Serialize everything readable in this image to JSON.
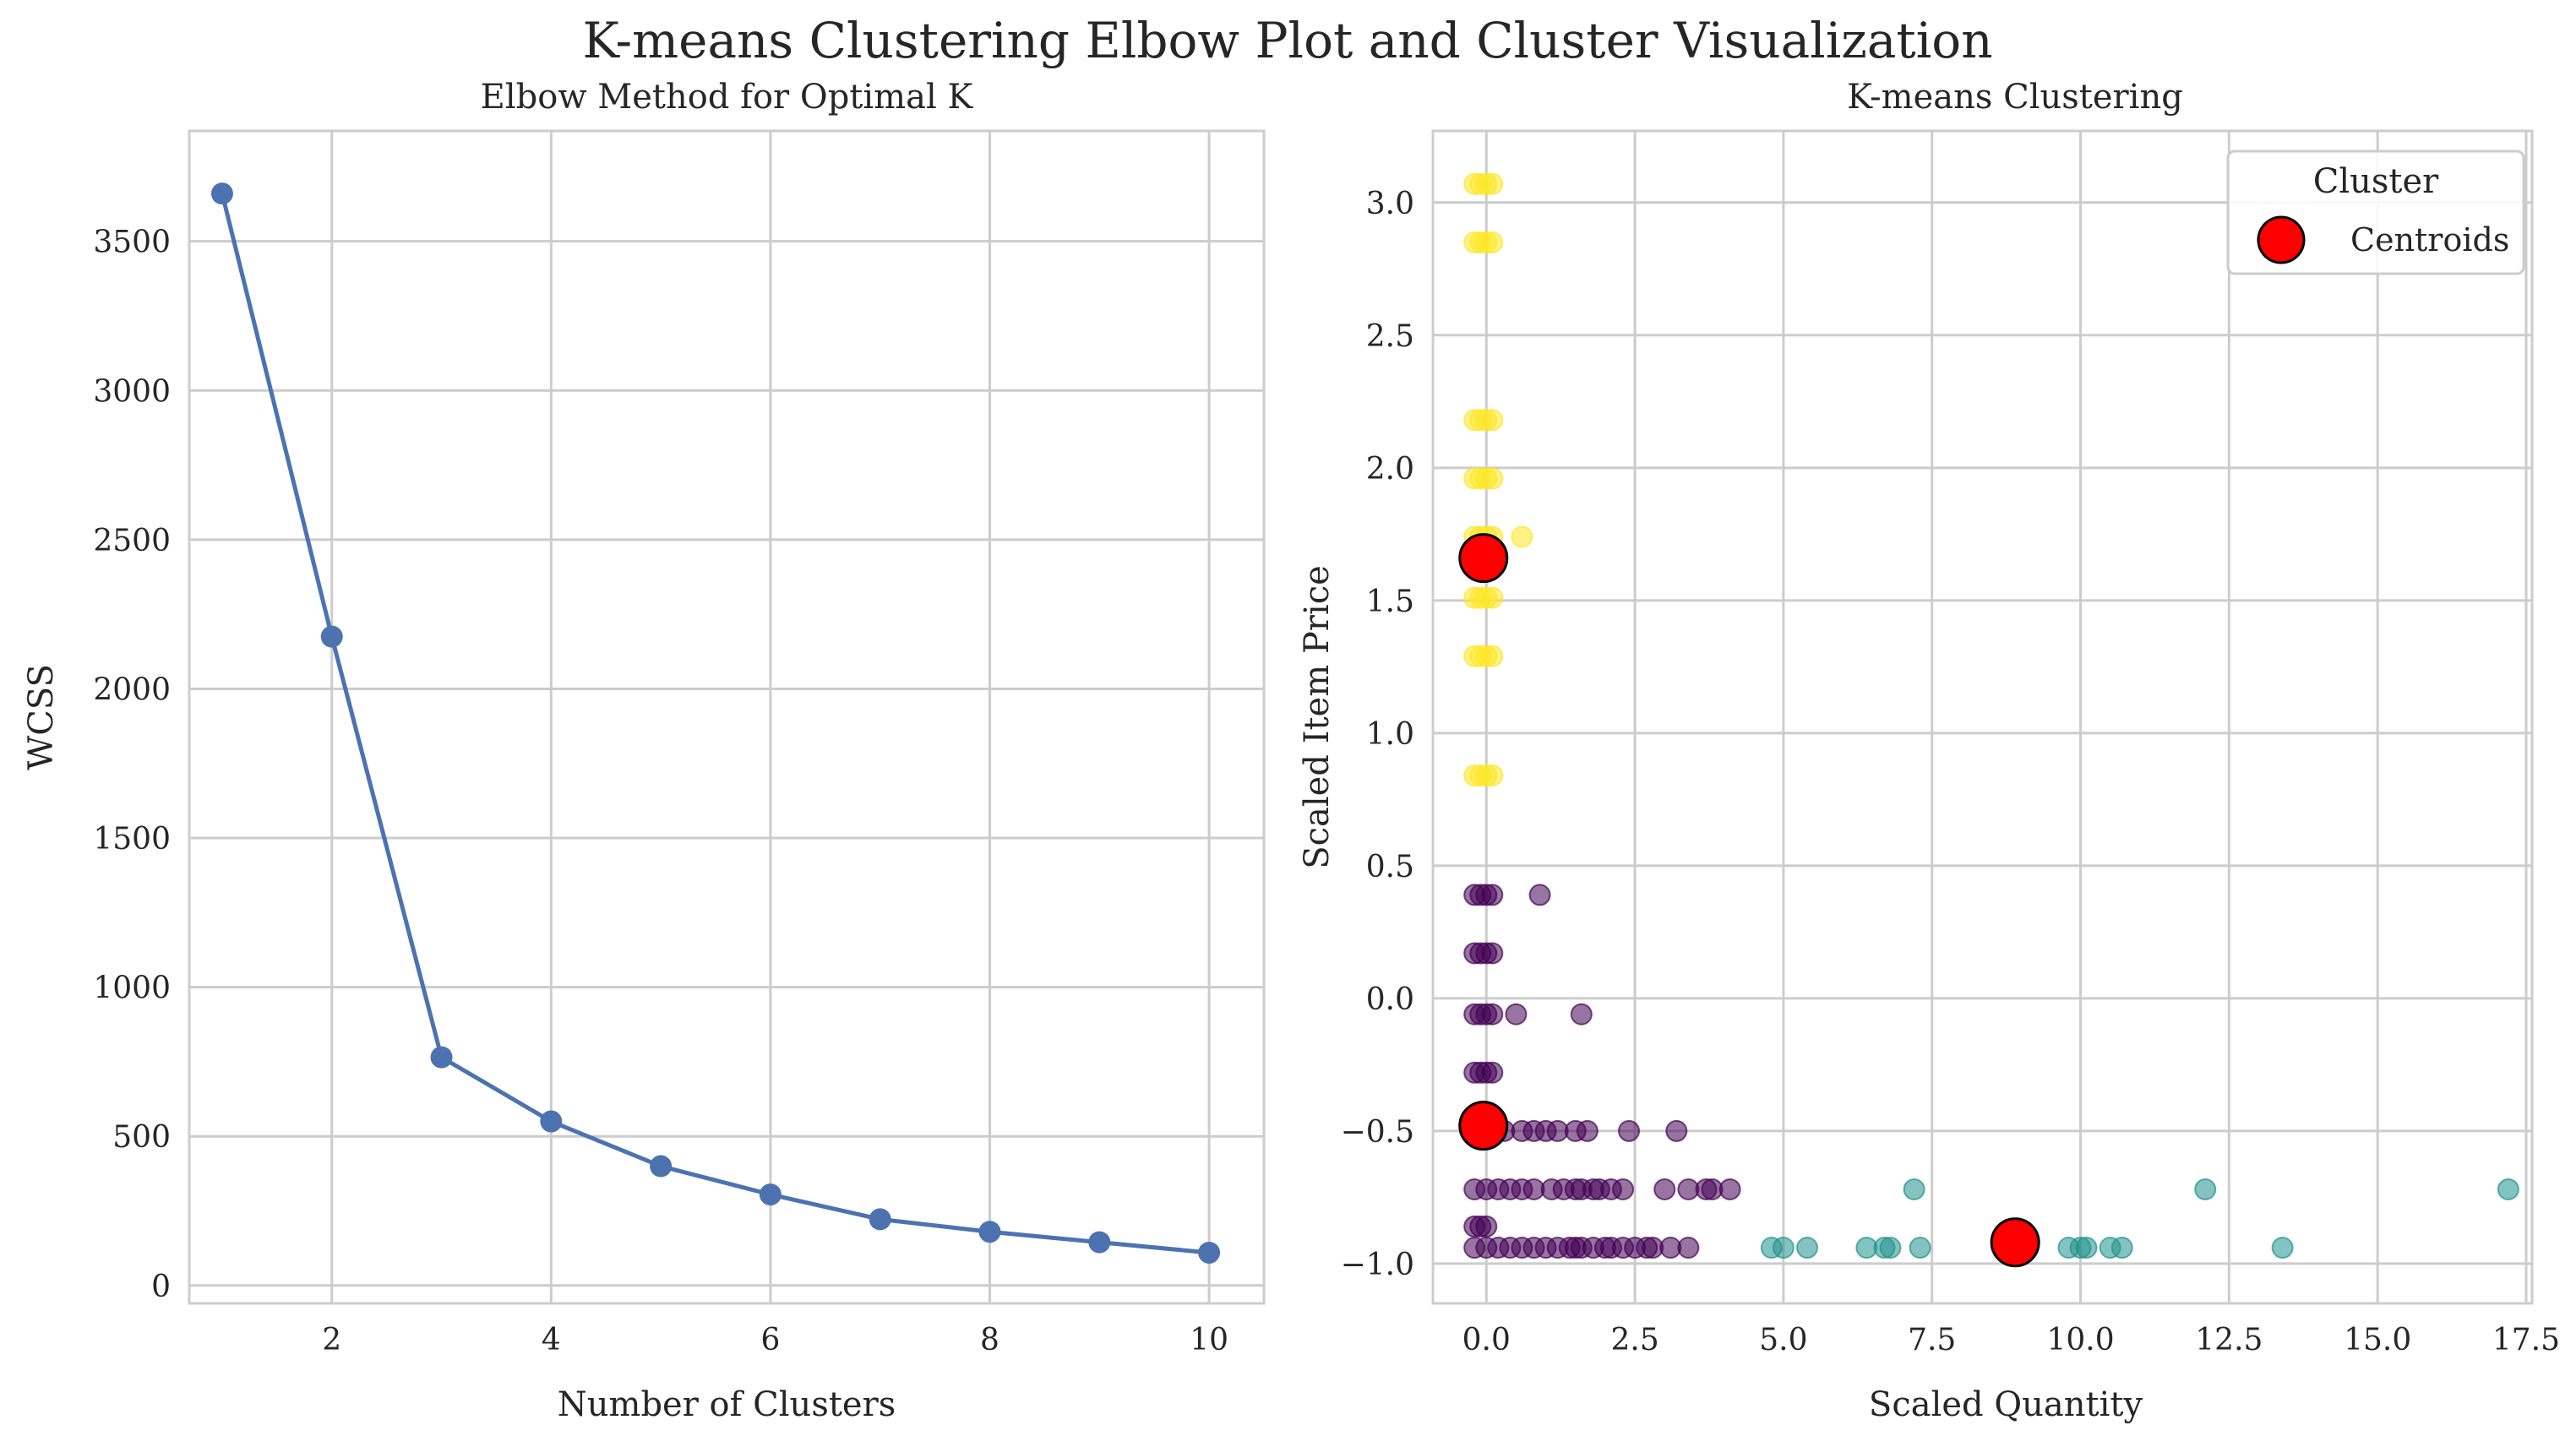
{
  "figure": {
    "suptitle": "K-means Clustering Elbow Plot and Cluster Visualization"
  },
  "chart_data": [
    {
      "type": "line",
      "title": "Elbow Method for Optimal K",
      "xlabel": "Number of Clusters",
      "ylabel": "WCSS",
      "x": [
        1,
        2,
        3,
        4,
        5,
        6,
        7,
        8,
        9,
        10
      ],
      "y": [
        3660,
        2175,
        765,
        550,
        400,
        305,
        222,
        180,
        145,
        110
      ],
      "xlim": [
        0.7,
        10.5
      ],
      "ylim": [
        -60,
        3870
      ],
      "xticks": [
        2,
        4,
        6,
        8,
        10
      ],
      "yticks": [
        0,
        500,
        1000,
        1500,
        2000,
        2500,
        3000,
        3500
      ],
      "grid": true,
      "color": "#4c72b0"
    },
    {
      "type": "scatter",
      "title": "K-means Clustering",
      "xlabel": "Scaled Quantity",
      "ylabel": "Scaled Item Price",
      "xlim": [
        -0.9,
        17.6
      ],
      "ylim": [
        -1.15,
        3.27
      ],
      "xticks": [
        0.0,
        2.5,
        5.0,
        7.5,
        10.0,
        12.5,
        15.0,
        17.5
      ],
      "xtick_labels": [
        "0.0",
        "2.5",
        "5.0",
        "7.5",
        "10.0",
        "12.5",
        "15.0",
        "17.5"
      ],
      "yticks": [
        -1.0,
        -0.5,
        0.0,
        0.5,
        1.0,
        1.5,
        2.0,
        2.5,
        3.0
      ],
      "ytick_labels": [
        "−1.0",
        "−0.5",
        "0.0",
        "0.5",
        "1.0",
        "1.5",
        "2.0",
        "2.5",
        "3.0"
      ],
      "grid": true,
      "legend": {
        "title": "Cluster",
        "position": "top-right",
        "entries": [
          "Centroids"
        ]
      },
      "series": [
        {
          "cluster": 0,
          "color": "#440154",
          "points": [
            [
              -0.2,
              0.39
            ],
            [
              -0.1,
              0.39
            ],
            [
              0.0,
              0.39
            ],
            [
              0.1,
              0.39
            ],
            [
              0.9,
              0.39
            ],
            [
              -0.2,
              0.17
            ],
            [
              -0.1,
              0.17
            ],
            [
              0.0,
              0.17
            ],
            [
              0.1,
              0.17
            ],
            [
              -0.2,
              -0.06
            ],
            [
              -0.1,
              -0.06
            ],
            [
              0.0,
              -0.06
            ],
            [
              0.1,
              -0.06
            ],
            [
              0.5,
              -0.06
            ],
            [
              1.6,
              -0.06
            ],
            [
              -0.2,
              -0.28
            ],
            [
              -0.1,
              -0.28
            ],
            [
              0.0,
              -0.28
            ],
            [
              0.1,
              -0.28
            ],
            [
              -0.2,
              -0.5
            ],
            [
              0.1,
              -0.5
            ],
            [
              0.3,
              -0.5
            ],
            [
              0.6,
              -0.5
            ],
            [
              0.8,
              -0.5
            ],
            [
              1.0,
              -0.5
            ],
            [
              1.2,
              -0.5
            ],
            [
              1.5,
              -0.5
            ],
            [
              1.7,
              -0.5
            ],
            [
              2.4,
              -0.5
            ],
            [
              3.2,
              -0.5
            ],
            [
              -0.2,
              -0.72
            ],
            [
              0.0,
              -0.72
            ],
            [
              0.2,
              -0.72
            ],
            [
              0.4,
              -0.72
            ],
            [
              0.6,
              -0.72
            ],
            [
              0.8,
              -0.72
            ],
            [
              1.1,
              -0.72
            ],
            [
              1.3,
              -0.72
            ],
            [
              1.5,
              -0.72
            ],
            [
              1.6,
              -0.72
            ],
            [
              1.8,
              -0.72
            ],
            [
              1.9,
              -0.72
            ],
            [
              2.1,
              -0.72
            ],
            [
              2.3,
              -0.72
            ],
            [
              3.0,
              -0.72
            ],
            [
              3.4,
              -0.72
            ],
            [
              3.7,
              -0.72
            ],
            [
              3.8,
              -0.72
            ],
            [
              4.1,
              -0.72
            ],
            [
              -0.2,
              -0.86
            ],
            [
              -0.1,
              -0.86
            ],
            [
              0.0,
              -0.86
            ],
            [
              -0.2,
              -0.94
            ],
            [
              0.0,
              -0.94
            ],
            [
              0.2,
              -0.94
            ],
            [
              0.4,
              -0.94
            ],
            [
              0.6,
              -0.94
            ],
            [
              0.8,
              -0.94
            ],
            [
              1.0,
              -0.94
            ],
            [
              1.2,
              -0.94
            ],
            [
              1.4,
              -0.94
            ],
            [
              1.5,
              -0.94
            ],
            [
              1.6,
              -0.94
            ],
            [
              1.8,
              -0.94
            ],
            [
              2.0,
              -0.94
            ],
            [
              2.1,
              -0.94
            ],
            [
              2.3,
              -0.94
            ],
            [
              2.5,
              -0.94
            ],
            [
              2.7,
              -0.94
            ],
            [
              2.8,
              -0.94
            ],
            [
              3.1,
              -0.94
            ],
            [
              3.4,
              -0.94
            ]
          ]
        },
        {
          "cluster": 1,
          "color": "#21918c",
          "points": [
            [
              4.8,
              -0.94
            ],
            [
              5.0,
              -0.94
            ],
            [
              5.4,
              -0.94
            ],
            [
              6.4,
              -0.94
            ],
            [
              6.7,
              -0.94
            ],
            [
              6.8,
              -0.94
            ],
            [
              7.3,
              -0.94
            ],
            [
              7.2,
              -0.72
            ],
            [
              9.8,
              -0.94
            ],
            [
              10.0,
              -0.94
            ],
            [
              10.1,
              -0.94
            ],
            [
              10.5,
              -0.94
            ],
            [
              10.7,
              -0.94
            ],
            [
              12.1,
              -0.72
            ],
            [
              13.4,
              -0.94
            ],
            [
              17.2,
              -0.72
            ]
          ]
        },
        {
          "cluster": 2,
          "color": "#fde725",
          "points": [
            [
              -0.2,
              3.07
            ],
            [
              -0.1,
              3.07
            ],
            [
              0.0,
              3.07
            ],
            [
              0.1,
              3.07
            ],
            [
              -0.2,
              2.85
            ],
            [
              -0.1,
              2.85
            ],
            [
              0.0,
              2.85
            ],
            [
              0.1,
              2.85
            ],
            [
              -0.2,
              2.18
            ],
            [
              -0.1,
              2.18
            ],
            [
              0.0,
              2.18
            ],
            [
              0.1,
              2.18
            ],
            [
              -0.2,
              1.96
            ],
            [
              -0.1,
              1.96
            ],
            [
              0.0,
              1.96
            ],
            [
              0.1,
              1.96
            ],
            [
              -0.2,
              1.74
            ],
            [
              -0.1,
              1.74
            ],
            [
              0.0,
              1.74
            ],
            [
              0.1,
              1.74
            ],
            [
              0.6,
              1.74
            ],
            [
              -0.2,
              1.51
            ],
            [
              -0.1,
              1.51
            ],
            [
              0.0,
              1.51
            ],
            [
              0.1,
              1.51
            ],
            [
              -0.2,
              1.29
            ],
            [
              -0.1,
              1.29
            ],
            [
              0.0,
              1.29
            ],
            [
              0.1,
              1.29
            ],
            [
              -0.2,
              0.84
            ],
            [
              -0.1,
              0.84
            ],
            [
              0.0,
              0.84
            ],
            [
              0.1,
              0.84
            ]
          ]
        }
      ],
      "centroids": {
        "label": "Centroids",
        "color": "#ff0000",
        "points": [
          [
            -0.05,
            1.66
          ],
          [
            -0.05,
            -0.48
          ],
          [
            8.9,
            -0.92
          ]
        ]
      }
    }
  ]
}
